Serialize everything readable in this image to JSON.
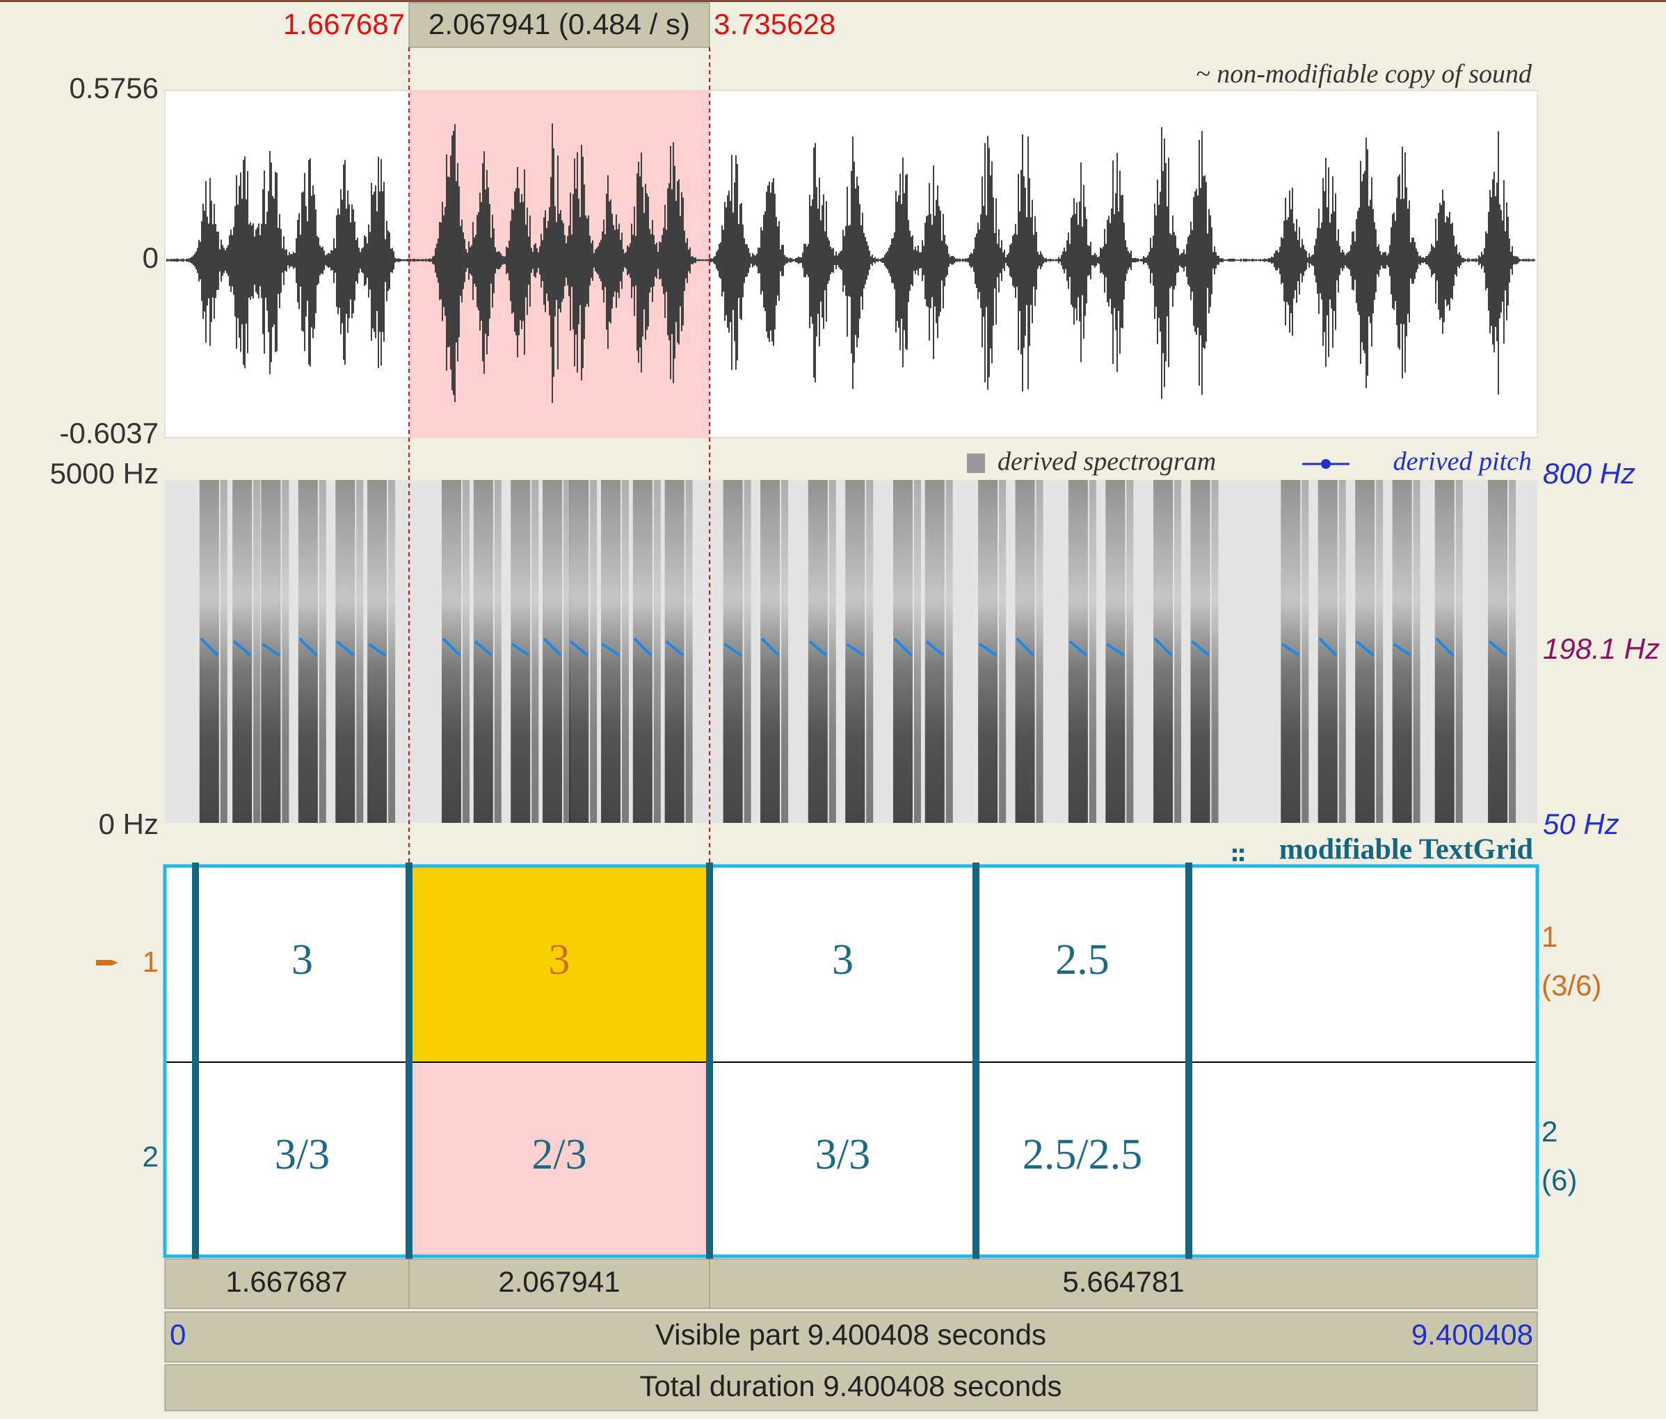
{
  "selection": {
    "start": "1.667687",
    "duration": "2.067941 (0.484 / s)",
    "end": "3.735628"
  },
  "sound": {
    "label": "~ non-modifiable copy of sound",
    "max": "0.5756",
    "zero": "0",
    "min": "-0.6037"
  },
  "spectrogram": {
    "label": "derived spectrogram",
    "pitch_label": "derived pitch",
    "top": "5000 Hz",
    "bottom": "0 Hz",
    "pitch_top": "800 Hz",
    "pitch_cursor": "198.1 Hz",
    "pitch_bottom": "50 Hz"
  },
  "textgrid": {
    "label": "modifiable TextGrid",
    "tiers": [
      {
        "number": "1",
        "info": [
          "1",
          "(3/6)"
        ],
        "intervals": [
          "3",
          "3",
          "3",
          "2.5"
        ]
      },
      {
        "number": "2",
        "info": [
          "2",
          "(6)"
        ],
        "intervals": [
          "3/3",
          "2/3",
          "3/3",
          "2.5/2.5"
        ]
      }
    ]
  },
  "time_bar": {
    "segments": [
      "1.667687",
      "2.067941",
      "5.664781"
    ],
    "visible_start": "0",
    "visible": "Visible part 9.400408 seconds",
    "visible_end": "9.400408",
    "total": "Total duration 9.400408 seconds"
  }
}
